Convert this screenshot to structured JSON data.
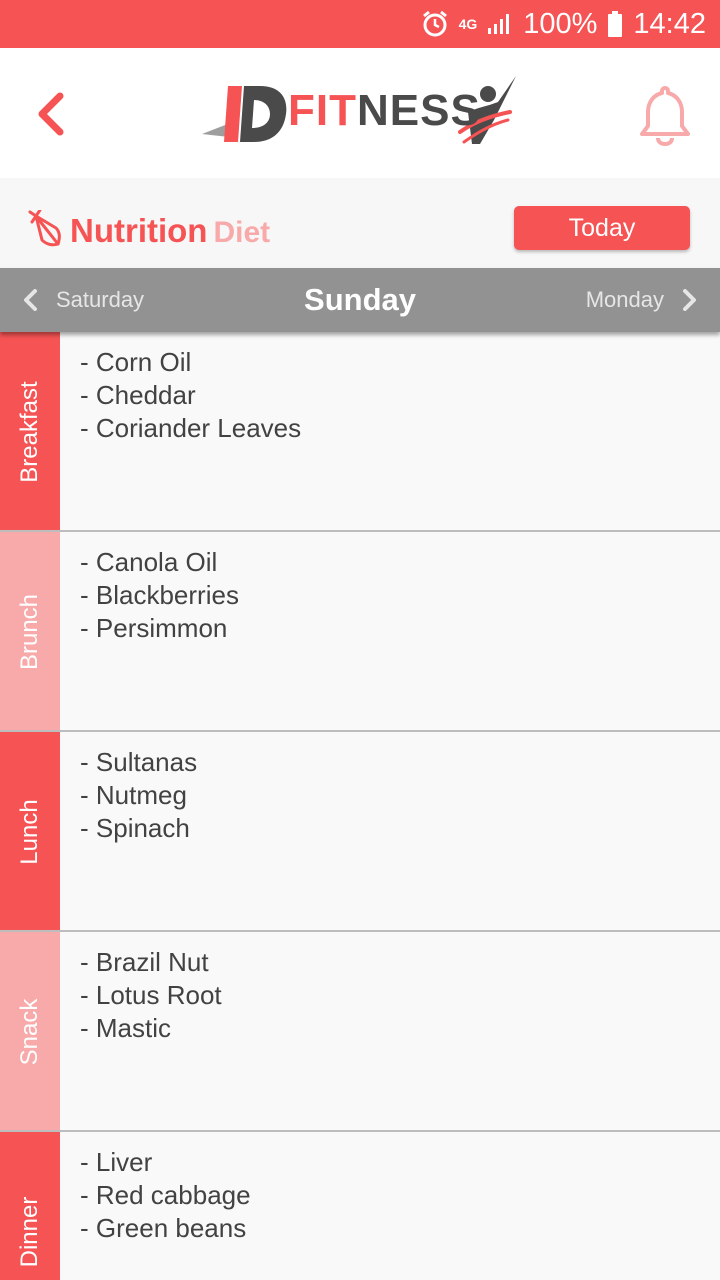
{
  "status_bar": {
    "network": "4G",
    "battery": "100%",
    "time": "14:42"
  },
  "header": {
    "logo_prefix": "ID",
    "logo_fit": "FIT",
    "logo_rest": "NESS"
  },
  "section": {
    "title": "Nutrition",
    "subtitle": "Diet",
    "today_label": "Today"
  },
  "day_nav": {
    "previous": "Saturday",
    "current": "Sunday",
    "next": "Monday"
  },
  "meals": [
    {
      "name": "Breakfast",
      "items": [
        "Corn Oil",
        "Cheddar",
        "Coriander Leaves"
      ]
    },
    {
      "name": "Brunch",
      "items": [
        "Canola Oil",
        "Blackberries",
        "Persimmon"
      ]
    },
    {
      "name": "Lunch",
      "items": [
        "Sultanas",
        "Nutmeg",
        "Spinach"
      ]
    },
    {
      "name": "Snack",
      "items": [
        "Brazil Nut",
        "Lotus Root",
        "Mastic"
      ]
    },
    {
      "name": "Dinner",
      "items": [
        "Liver",
        "Red cabbage",
        "Green beans"
      ]
    }
  ],
  "colors": {
    "accent": "#f55354",
    "accent_light": "#f8a9a9",
    "nav_bar": "#929292"
  }
}
